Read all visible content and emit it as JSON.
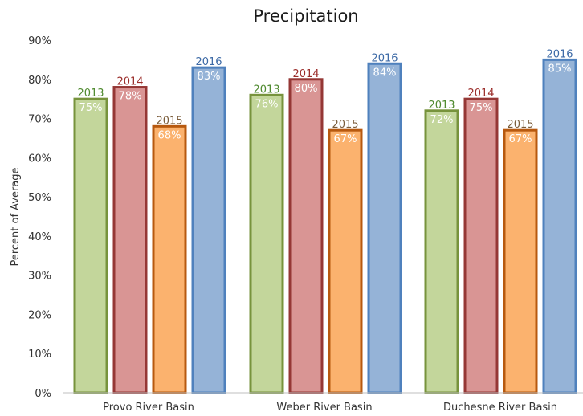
{
  "chart_data": {
    "type": "bar",
    "title": "Precipitation",
    "ylabel": "Percent of Average",
    "xlabel": "",
    "ylim": [
      0,
      90
    ],
    "yticks": [
      "0%",
      "10%",
      "20%",
      "30%",
      "40%",
      "50%",
      "60%",
      "70%",
      "80%",
      "90%"
    ],
    "categories": [
      "Provo River Basin",
      "Weber River Basin",
      "Duchesne River Basin"
    ],
    "series": [
      {
        "name": "2013",
        "values": [
          75,
          76,
          72
        ],
        "labels": [
          "75%",
          "76%",
          "72%"
        ],
        "fill": "#c3d69b",
        "stroke": "#77933c",
        "label_color": "#4f8a2f"
      },
      {
        "name": "2014",
        "values": [
          78,
          80,
          75
        ],
        "labels": [
          "78%",
          "80%",
          "75%"
        ],
        "fill": "#d99594",
        "stroke": "#953735",
        "label_color": "#9b2d2a"
      },
      {
        "name": "2015",
        "values": [
          68,
          67,
          67
        ],
        "labels": [
          "68%",
          "67%",
          "67%"
        ],
        "fill": "#fbb26e",
        "stroke": "#b7590f",
        "label_color": "#7a5c3a"
      },
      {
        "name": "2016",
        "values": [
          83,
          84,
          85
        ],
        "labels": [
          "83%",
          "84%",
          "85%"
        ],
        "fill": "#95b3d7",
        "stroke": "#4f81bd",
        "label_color": "#3d6aa6"
      }
    ],
    "grid": false,
    "legend": "none"
  }
}
